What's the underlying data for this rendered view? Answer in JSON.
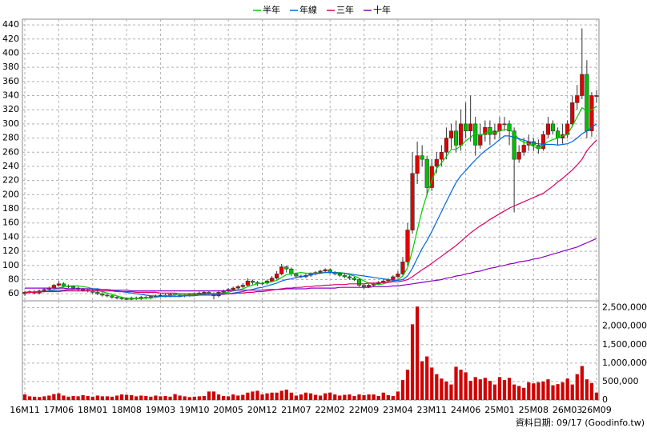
{
  "chart_data": {
    "type": "candlestick",
    "categories": [
      "16M11",
      null,
      null,
      null,
      null,
      null,
      null,
      "17M06",
      null,
      null,
      null,
      null,
      null,
      null,
      "18M01",
      null,
      null,
      null,
      null,
      null,
      null,
      "18M08",
      null,
      null,
      null,
      null,
      null,
      null,
      "19M03",
      null,
      null,
      null,
      null,
      null,
      null,
      "19M10",
      null,
      null,
      null,
      null,
      null,
      null,
      "20M05",
      null,
      null,
      null,
      null,
      null,
      null,
      "20M12",
      null,
      null,
      null,
      null,
      null,
      null,
      "21M07",
      null,
      null,
      null,
      null,
      null,
      null,
      "22M02",
      null,
      null,
      null,
      null,
      null,
      null,
      "22M09",
      null,
      null,
      null,
      null,
      null,
      null,
      "23M04",
      null,
      null,
      null,
      null,
      null,
      null,
      "23M11",
      null,
      null,
      null,
      null,
      null,
      null,
      "24M06",
      null,
      null,
      null,
      null,
      null,
      null,
      "25M01",
      null,
      null,
      null,
      null,
      null,
      null,
      "25M08",
      null,
      null,
      null,
      null,
      null,
      null,
      "26M03",
      null,
      null,
      null,
      null,
      null,
      "26M09"
    ],
    "open": [
      60,
      62,
      63,
      61,
      64,
      66,
      68,
      72,
      74,
      71,
      70,
      68,
      66,
      65,
      64,
      62,
      60,
      58,
      57,
      55,
      54,
      53,
      52,
      54,
      53,
      55,
      54,
      56,
      57,
      58,
      57,
      59,
      58,
      57,
      58,
      59,
      60,
      61,
      62,
      60,
      57,
      62,
      64,
      66,
      68,
      70,
      72,
      78,
      76,
      74,
      75,
      78,
      82,
      88,
      98,
      95,
      88,
      85,
      84,
      86,
      88,
      90,
      92,
      94,
      90,
      88,
      86,
      84,
      82,
      80,
      72,
      70,
      72,
      74,
      76,
      78,
      80,
      84,
      88,
      105,
      150,
      230,
      255,
      250,
      210,
      240,
      250,
      260,
      280,
      290,
      270,
      300,
      290,
      300,
      270,
      285,
      295,
      285,
      290,
      300,
      300,
      290,
      250,
      260,
      270,
      275,
      270,
      265,
      285,
      300,
      290,
      280,
      285,
      300,
      330,
      340,
      370,
      290,
      340
    ],
    "high": [
      64,
      65,
      65,
      66,
      68,
      70,
      74,
      78,
      76,
      73,
      72,
      70,
      68,
      67,
      66,
      64,
      62,
      60,
      59,
      57,
      56,
      55,
      56,
      56,
      57,
      57,
      58,
      59,
      60,
      60,
      61,
      61,
      60,
      60,
      61,
      62,
      63,
      64,
      64,
      62,
      64,
      66,
      68,
      70,
      72,
      75,
      82,
      80,
      78,
      77,
      80,
      85,
      92,
      102,
      100,
      97,
      90,
      87,
      88,
      90,
      92,
      94,
      96,
      96,
      92,
      90,
      88,
      86,
      84,
      82,
      74,
      74,
      76,
      78,
      80,
      82,
      86,
      92,
      112,
      160,
      260,
      275,
      270,
      255,
      250,
      260,
      270,
      295,
      300,
      305,
      320,
      330,
      340,
      310,
      300,
      305,
      305,
      300,
      310,
      310,
      305,
      295,
      270,
      280,
      285,
      280,
      278,
      290,
      310,
      305,
      295,
      300,
      305,
      340,
      355,
      435,
      390,
      345,
      348
    ],
    "low": [
      57,
      60,
      59,
      59,
      62,
      64,
      66,
      70,
      69,
      68,
      66,
      64,
      63,
      62,
      60,
      58,
      56,
      55,
      53,
      52,
      51,
      51,
      51,
      51,
      51,
      52,
      52,
      54,
      55,
      55,
      55,
      56,
      55,
      55,
      56,
      57,
      58,
      59,
      58,
      52,
      55,
      60,
      62,
      64,
      66,
      68,
      70,
      73,
      71,
      72,
      73,
      76,
      80,
      86,
      90,
      85,
      82,
      82,
      82,
      84,
      86,
      88,
      90,
      88,
      86,
      84,
      82,
      80,
      78,
      70,
      67,
      68,
      70,
      72,
      74,
      76,
      78,
      82,
      86,
      100,
      145,
      215,
      240,
      200,
      205,
      230,
      240,
      250,
      265,
      260,
      262,
      280,
      275,
      255,
      265,
      275,
      270,
      278,
      280,
      290,
      270,
      175,
      245,
      255,
      262,
      262,
      258,
      262,
      280,
      285,
      270,
      272,
      280,
      295,
      320,
      335,
      280,
      282,
      330
    ],
    "close": [
      62,
      63,
      61,
      64,
      66,
      68,
      72,
      74,
      71,
      70,
      68,
      66,
      65,
      64,
      62,
      60,
      58,
      57,
      55,
      54,
      53,
      52,
      54,
      53,
      55,
      54,
      56,
      57,
      58,
      57,
      59,
      58,
      57,
      58,
      59,
      60,
      61,
      62,
      60,
      57,
      62,
      64,
      66,
      68,
      70,
      72,
      78,
      76,
      74,
      75,
      78,
      82,
      88,
      98,
      95,
      88,
      85,
      84,
      86,
      88,
      90,
      92,
      94,
      90,
      88,
      86,
      84,
      82,
      80,
      72,
      70,
      72,
      74,
      76,
      78,
      80,
      84,
      88,
      105,
      150,
      230,
      255,
      250,
      210,
      240,
      250,
      260,
      280,
      290,
      270,
      300,
      290,
      300,
      270,
      285,
      295,
      285,
      290,
      300,
      300,
      290,
      250,
      260,
      270,
      275,
      270,
      265,
      285,
      300,
      290,
      280,
      285,
      300,
      330,
      340,
      370,
      290,
      340,
      340
    ],
    "up_color": "#e00000",
    "down_color": "#00c000",
    "ylim": [
      50,
      448
    ],
    "yticks": [
      60,
      80,
      100,
      120,
      140,
      160,
      180,
      200,
      220,
      240,
      260,
      280,
      300,
      320,
      340,
      360,
      380,
      400,
      420,
      440
    ],
    "grid": true,
    "legend_position": "top",
    "series": [
      {
        "name": "半年",
        "color": "#00cc00",
        "values": [
          61,
          62,
          62,
          63,
          63,
          64,
          66,
          68,
          70,
          71,
          71,
          71,
          70,
          69,
          67,
          65,
          63,
          61,
          59,
          57,
          55,
          54,
          53,
          53,
          53,
          54,
          54,
          55,
          56,
          57,
          57,
          58,
          58,
          58,
          58,
          58,
          59,
          59,
          60,
          60,
          60,
          61,
          62,
          64,
          65,
          67,
          70,
          72,
          74,
          75,
          76,
          77,
          79,
          83,
          87,
          88,
          89,
          90,
          89,
          89,
          89,
          89,
          90,
          90,
          90,
          90,
          89,
          87,
          85,
          82,
          78,
          75,
          74,
          73,
          74,
          76,
          78,
          80,
          85,
          97,
          121,
          150,
          178,
          200,
          220,
          237,
          245,
          254,
          264,
          264,
          269,
          276,
          281,
          287,
          284,
          287,
          290,
          287,
          290,
          292,
          292,
          287,
          278,
          274,
          272,
          268,
          265,
          270,
          275,
          278,
          280,
          283,
          285,
          297,
          310,
          323,
          318,
          320,
          325
        ]
      },
      {
        "name": "年線",
        "color": "#0066dd",
        "values": [
          62,
          62,
          62,
          63,
          63,
          64,
          64,
          65,
          65,
          66,
          66,
          67,
          67,
          67,
          67,
          67,
          66,
          66,
          65,
          64,
          63,
          62,
          61,
          60,
          59,
          58,
          57,
          57,
          56,
          56,
          56,
          56,
          56,
          57,
          57,
          57,
          58,
          58,
          58,
          58,
          59,
          59,
          60,
          61,
          62,
          63,
          65,
          66,
          68,
          69,
          71,
          73,
          75,
          78,
          80,
          81,
          83,
          84,
          85,
          87,
          88,
          89,
          90,
          90,
          90,
          89,
          89,
          88,
          87,
          86,
          85,
          84,
          83,
          82,
          81,
          80,
          79,
          79,
          80,
          85,
          96,
          110,
          124,
          135,
          148,
          162,
          176,
          190,
          204,
          217,
          227,
          234,
          242,
          249,
          256,
          262,
          267,
          272,
          278,
          283,
          283,
          281,
          279,
          277,
          275,
          273,
          272,
          271,
          271,
          271,
          270,
          271,
          272,
          275,
          280,
          286,
          290,
          295,
          300
        ]
      },
      {
        "name": "三年",
        "color": "#dd0066",
        "values": [
          62,
          62,
          62,
          63,
          63,
          63,
          63,
          63,
          64,
          64,
          64,
          64,
          64,
          64,
          64,
          64,
          64,
          64,
          64,
          63,
          63,
          63,
          63,
          62,
          62,
          62,
          62,
          62,
          61,
          61,
          61,
          61,
          60,
          60,
          60,
          60,
          60,
          60,
          60,
          60,
          60,
          60,
          60,
          60,
          61,
          61,
          62,
          62,
          63,
          63,
          64,
          65,
          66,
          67,
          68,
          68,
          69,
          69,
          70,
          70,
          71,
          71,
          72,
          72,
          73,
          73,
          73,
          74,
          74,
          74,
          74,
          75,
          75,
          75,
          76,
          76,
          77,
          77,
          78,
          80,
          84,
          89,
          94,
          98,
          103,
          108,
          113,
          118,
          123,
          128,
          134,
          140,
          146,
          151,
          156,
          160,
          165,
          169,
          173,
          177,
          181,
          184,
          187,
          190,
          193,
          196,
          199,
          202,
          207,
          212,
          218,
          223,
          229,
          235,
          242,
          250,
          262,
          270,
          277
        ]
      },
      {
        "name": "十年",
        "color": "#8800cc",
        "values": [
          68,
          68,
          68,
          68,
          68,
          68,
          68,
          68,
          68,
          67,
          67,
          67,
          67,
          67,
          66,
          66,
          66,
          66,
          65,
          65,
          65,
          65,
          64,
          64,
          64,
          64,
          64,
          64,
          64,
          64,
          64,
          64,
          64,
          64,
          64,
          64,
          64,
          64,
          64,
          64,
          64,
          64,
          64,
          65,
          65,
          65,
          65,
          65,
          65,
          65,
          66,
          66,
          66,
          66,
          67,
          67,
          67,
          67,
          67,
          68,
          68,
          68,
          68,
          68,
          68,
          69,
          69,
          69,
          69,
          69,
          69,
          69,
          70,
          70,
          70,
          70,
          71,
          71,
          72,
          73,
          74,
          75,
          76,
          77,
          78,
          79,
          80,
          82,
          83,
          85,
          86,
          88,
          89,
          91,
          92,
          94,
          96,
          97,
          99,
          100,
          102,
          103,
          105,
          106,
          107,
          109,
          110,
          112,
          114,
          116,
          118,
          120,
          122,
          124,
          126,
          129,
          132,
          135,
          138
        ]
      }
    ],
    "volume": {
      "color": "#d00000",
      "values": [
        150000,
        100000,
        90000,
        80000,
        100000,
        120000,
        160000,
        180000,
        120000,
        90000,
        110000,
        100000,
        130000,
        110000,
        90000,
        120000,
        100000,
        100000,
        90000,
        120000,
        150000,
        140000,
        130000,
        100000,
        120000,
        110000,
        90000,
        120000,
        100000,
        110000,
        90000,
        160000,
        120000,
        100000,
        80000,
        90000,
        100000,
        110000,
        230000,
        230000,
        150000,
        110000,
        100000,
        150000,
        120000,
        140000,
        200000,
        230000,
        250000,
        150000,
        180000,
        200000,
        200000,
        250000,
        280000,
        200000,
        120000,
        150000,
        200000,
        180000,
        140000,
        120000,
        180000,
        200000,
        150000,
        120000,
        140000,
        150000,
        110000,
        150000,
        130000,
        150000,
        150000,
        110000,
        200000,
        130000,
        110000,
        230000,
        540000,
        820000,
        2050000,
        2530000,
        1050000,
        1180000,
        880000,
        700000,
        580000,
        500000,
        420000,
        900000,
        820000,
        750000,
        520000,
        620000,
        560000,
        600000,
        520000,
        420000,
        620000,
        540000,
        600000,
        420000,
        380000,
        330000,
        480000,
        450000,
        480000,
        500000,
        560000,
        400000,
        430000,
        480000,
        580000,
        420000,
        700000,
        920000,
        560000,
        460000,
        200000
      ],
      "ylim": [
        0,
        2600000
      ],
      "yticks": [
        0,
        {
          "value": 500000,
          "label": "500,000"
        },
        {
          "value": 1000000,
          "label": "1,000,000"
        },
        {
          "value": 1500000,
          "label": "1,500,000"
        },
        {
          "value": 2000000,
          "label": "2,000,000"
        },
        {
          "value": 2500000,
          "label": "2,500,000"
        }
      ]
    },
    "footer": "資料日期: 09/17 (Goodinfo.tw)"
  }
}
